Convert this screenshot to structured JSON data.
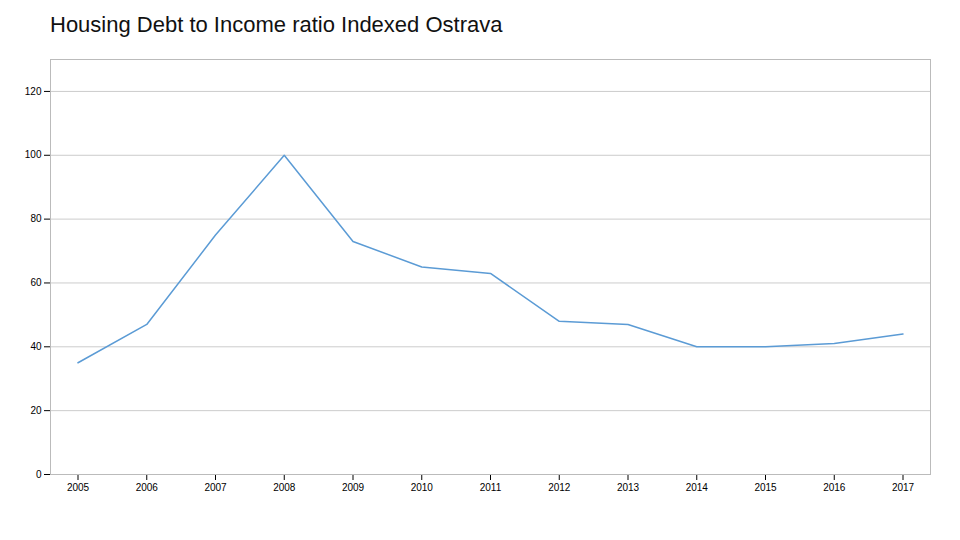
{
  "chart_data": {
    "type": "line",
    "title": "Housing Debt to Income ratio Indexed Ostrava",
    "x": [
      2005,
      2006,
      2007,
      2008,
      2009,
      2010,
      2011,
      2012,
      2013,
      2014,
      2015,
      2016,
      2017
    ],
    "values": [
      35,
      47,
      75,
      100,
      73,
      65,
      63,
      48,
      47,
      40,
      40,
      41,
      44
    ],
    "color": "#5B9BD5",
    "xlim": [
      2004.6,
      2017.4
    ],
    "xticks": [
      2005,
      2006,
      2007,
      2008,
      2009,
      2010,
      2011,
      2012,
      2013,
      2014,
      2015,
      2016,
      2017
    ],
    "ylim": [
      0,
      130
    ],
    "yticks": [
      0,
      20,
      40,
      60,
      80,
      100,
      120
    ],
    "grid": true
  }
}
